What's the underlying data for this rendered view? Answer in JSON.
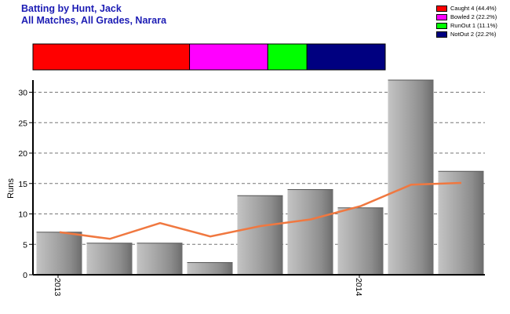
{
  "header": {
    "title": "Batting by Hunt, Jack",
    "subtitle": "All Matches, All Grades, Narara"
  },
  "legend": {
    "items": [
      {
        "label": "Caught 4 (44.4%)",
        "color": "#ff0000"
      },
      {
        "label": "Bowled 2 (22.2%)",
        "color": "#ff00ff"
      },
      {
        "label": "RunOut 1 (11.1%)",
        "color": "#00ff00"
      },
      {
        "label": "NotOut 2 (22.2%)",
        "color": "#000080"
      }
    ]
  },
  "chart_data": {
    "type": "bar",
    "title": "Batting by Hunt, Jack",
    "ylabel": "Runs",
    "ylim": [
      0,
      32
    ],
    "yticks": [
      0,
      5,
      10,
      15,
      20,
      25,
      30
    ],
    "grid": true,
    "legend_placement": "top-right",
    "x_tick_labels": [
      {
        "label": "2013",
        "index": 0
      },
      {
        "label": "2014",
        "index": 6
      }
    ],
    "series": [
      {
        "type": "bar",
        "values": [
          7,
          5.2,
          5.2,
          2,
          13,
          14,
          11,
          32,
          17
        ],
        "color": "#a0a0a0"
      },
      {
        "type": "line",
        "values": [
          7,
          5.9,
          8.5,
          6.3,
          8,
          9.1,
          11.3,
          14.8,
          15.1
        ],
        "color": "#f07840"
      }
    ],
    "dismissal_breakdown": {
      "type": "stacked-bar",
      "segments": [
        {
          "label": "Caught",
          "value": 4,
          "color": "#ff0000"
        },
        {
          "label": "Bowled",
          "value": 2,
          "color": "#ff00ff"
        },
        {
          "label": "RunOut",
          "value": 1,
          "color": "#00ff00"
        },
        {
          "label": "NotOut",
          "value": 2,
          "color": "#000080"
        }
      ]
    }
  }
}
